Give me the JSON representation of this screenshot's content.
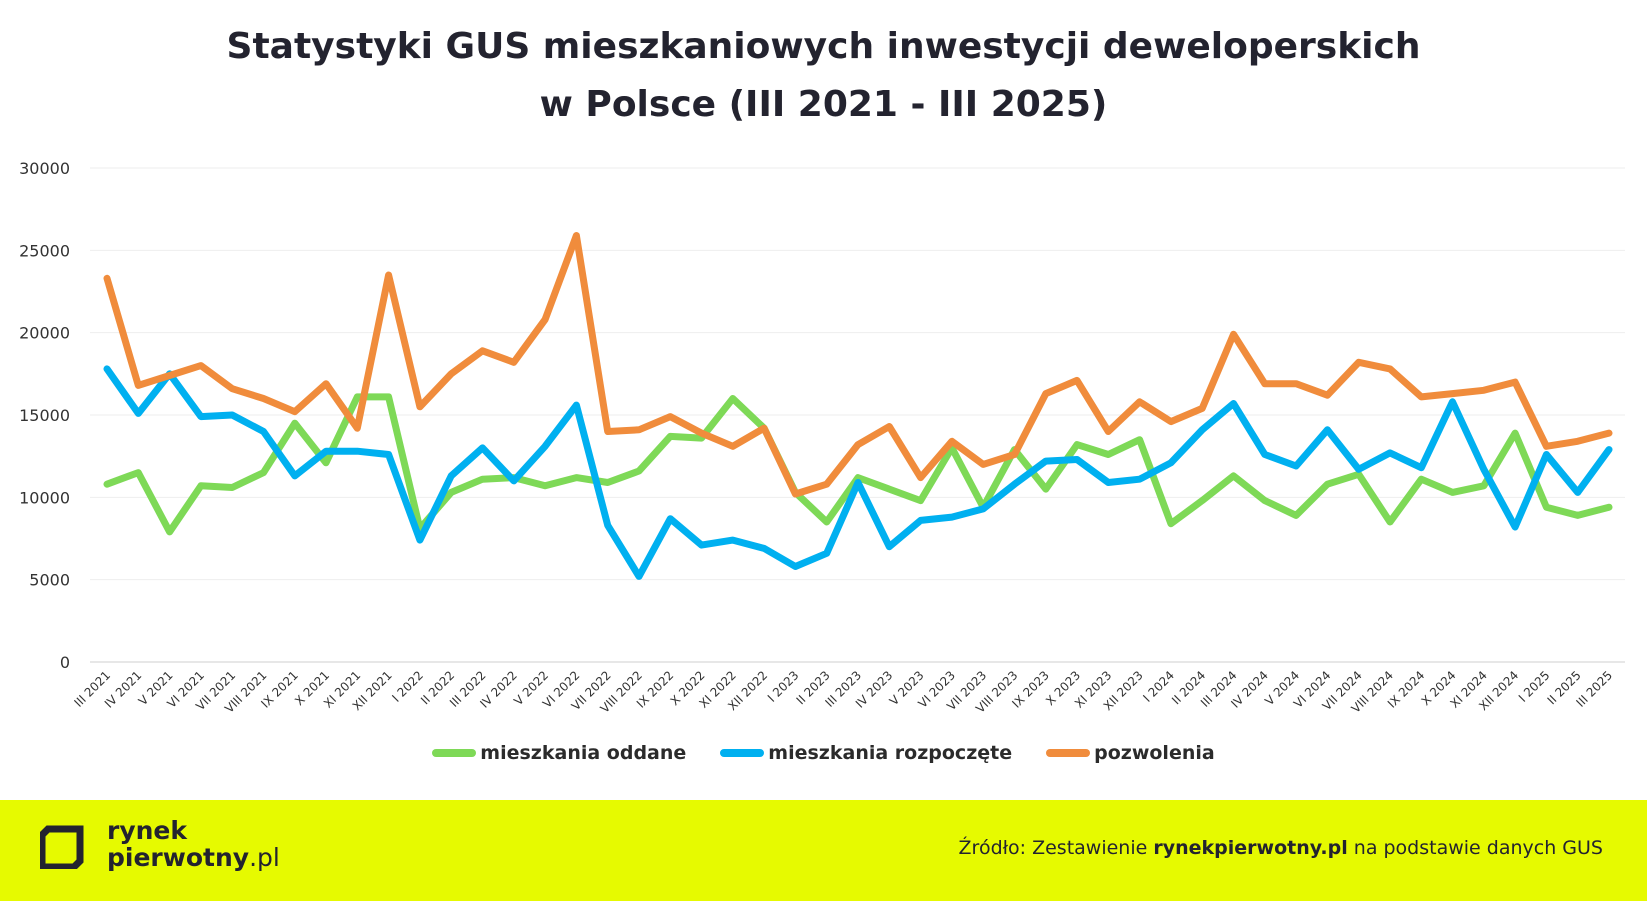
{
  "title_line1": "Statystyki GUS mieszkaniowych inwestycji deweloperskich",
  "title_line2": "w Polsce (III 2021 - III 2025)",
  "footer": {
    "logo_line1": "rynek",
    "logo_line2": "pierwotny",
    "logo_suffix": ".pl",
    "source_prefix": "Źródło: Zestawienie ",
    "source_bold": "rynekpierwotny.pl",
    "source_suffix": " na podstawie danych GUS",
    "background_color": "#e6fa00"
  },
  "chart_data": {
    "type": "line",
    "ylim": [
      0,
      30000
    ],
    "yticks": [
      0,
      5000,
      10000,
      15000,
      20000,
      25000,
      30000
    ],
    "grid": true,
    "legend_position": "bottom",
    "categories": [
      "III 2021",
      "IV 2021",
      "V 2021",
      "VI 2021",
      "VII 2021",
      "VIII 2021",
      "IX 2021",
      "X 2021",
      "XI 2021",
      "XII 2021",
      "I 2022",
      "II 2022",
      "III 2022",
      "IV 2022",
      "V 2022",
      "VI 2022",
      "VII 2022",
      "VIII 2022",
      "IX 2022",
      "X 2022",
      "XI 2022",
      "XII 2022",
      "I 2023",
      "II 2023",
      "III 2023",
      "IV 2023",
      "V 2023",
      "VI 2023",
      "VII 2023",
      "VIII 2023",
      "IX 2023",
      "X 2023",
      "XI 2023",
      "XII 2023",
      "I 2024",
      "II 2024",
      "III 2024",
      "IV 2024",
      "V 2024",
      "VI 2024",
      "VII 2024",
      "VIII 2024",
      "IX 2024",
      "X 2024",
      "XI 2024",
      "XII 2024",
      "I 2025",
      "II 2025",
      "III 2025"
    ],
    "series": [
      {
        "name": "mieszkania oddane",
        "color": "#7ed957",
        "values": [
          10800,
          11500,
          7900,
          10700,
          10600,
          11500,
          14500,
          12100,
          16100,
          16100,
          8100,
          10300,
          11100,
          11200,
          10700,
          11200,
          10900,
          11600,
          13700,
          13600,
          16000,
          14200,
          10300,
          8500,
          11200,
          10500,
          9800,
          13000,
          9400,
          12900,
          10500,
          13200,
          12600,
          13500,
          8400,
          9800,
          11300,
          9800,
          8900,
          10800,
          11400,
          8500,
          11100,
          10300,
          10700,
          13900,
          9400,
          8900,
          9400
        ]
      },
      {
        "name": "mieszkania rozpoczęte",
        "color": "#00b0f0",
        "values": [
          17800,
          15100,
          17500,
          14900,
          15000,
          14000,
          11300,
          12800,
          12800,
          12600,
          7400,
          11300,
          13000,
          11000,
          13100,
          15600,
          8300,
          5200,
          8700,
          7100,
          7400,
          6900,
          5800,
          6600,
          10900,
          7000,
          8600,
          8800,
          9300,
          10800,
          12200,
          12300,
          10900,
          11100,
          12100,
          14100,
          15700,
          12600,
          11900,
          14100,
          11700,
          12700,
          11800,
          15800,
          11700,
          8200,
          12600,
          10300,
          12900
        ]
      },
      {
        "name": "pozwolenia",
        "color": "#f08c3c",
        "values": [
          23300,
          16800,
          17400,
          18000,
          16600,
          16000,
          15200,
          16900,
          14200,
          23500,
          15500,
          17500,
          18900,
          18200,
          20800,
          25900,
          14000,
          14100,
          14900,
          13900,
          13100,
          14200,
          10200,
          10800,
          13200,
          14300,
          11200,
          13400,
          12000,
          12600,
          16300,
          17100,
          14000,
          15800,
          14600,
          15400,
          19900,
          16900,
          16900,
          16200,
          18200,
          17800,
          16100,
          16300,
          16500,
          17000,
          13100,
          13400,
          13900
        ]
      }
    ]
  }
}
